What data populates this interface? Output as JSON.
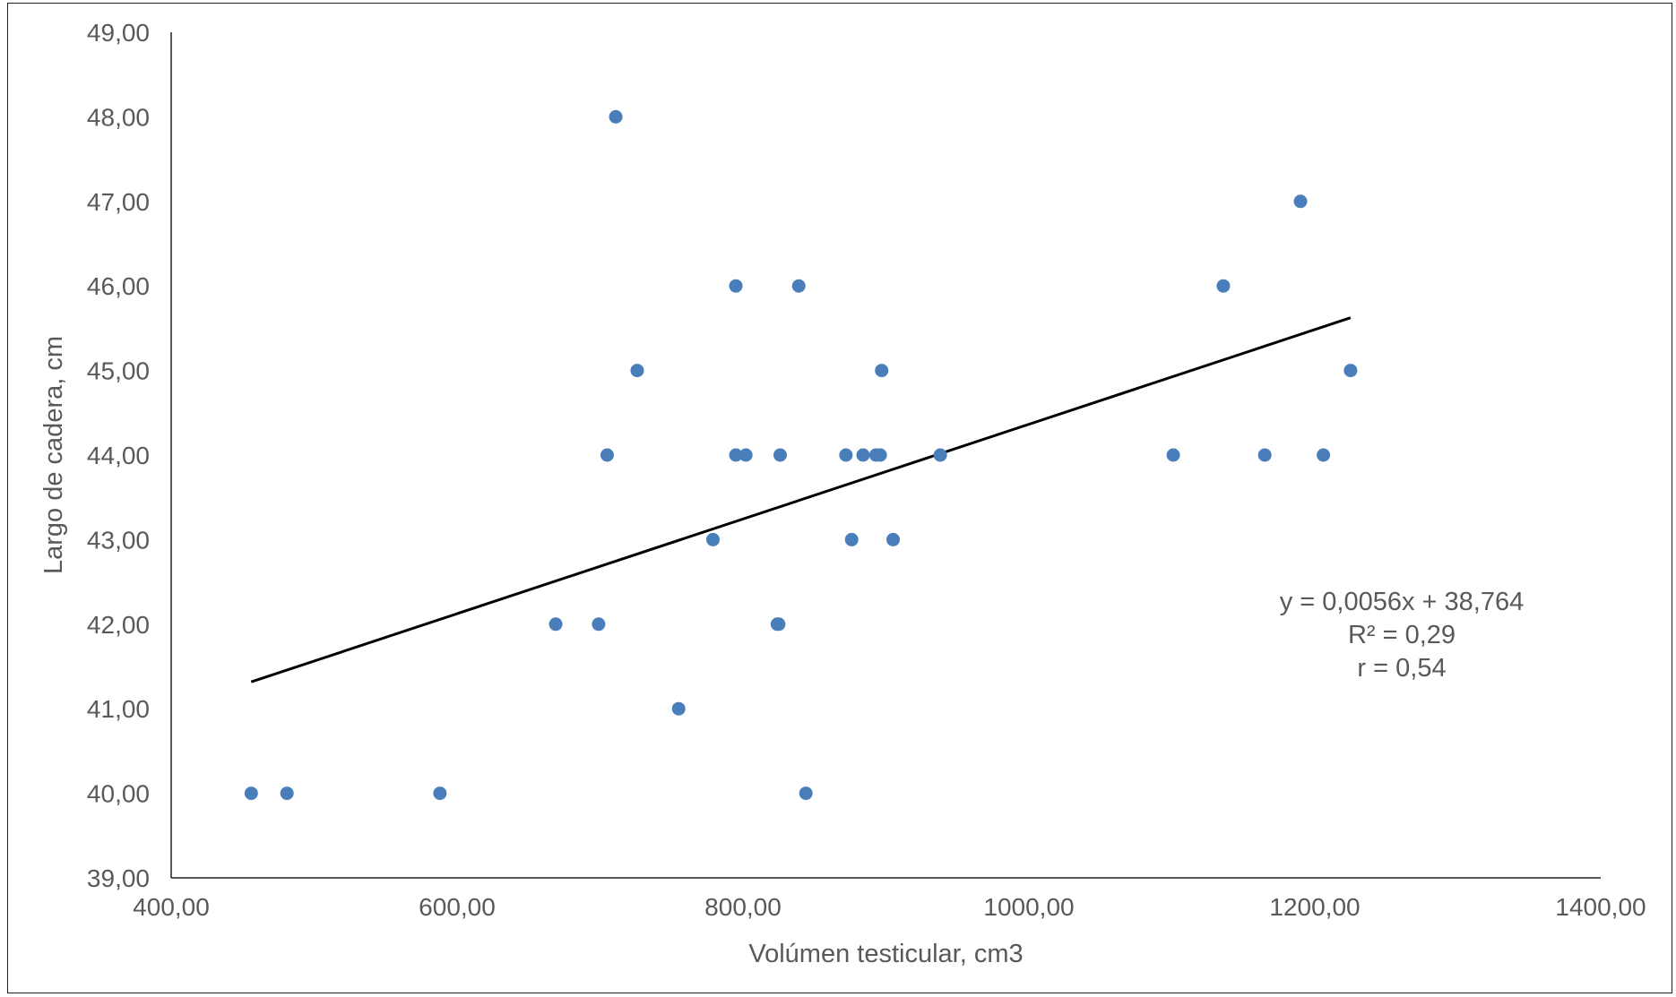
{
  "chart_data": {
    "type": "scatter",
    "title": "",
    "xlabel": "Volúmen testicular, cm3",
    "ylabel": "Largo de cadera, cm",
    "xlim": [
      400,
      1400
    ],
    "ylim": [
      39,
      49
    ],
    "x_ticks": [
      400,
      600,
      800,
      1000,
      1200,
      1400
    ],
    "y_ticks": [
      39,
      40,
      41,
      42,
      43,
      44,
      45,
      46,
      47,
      48,
      49
    ],
    "x_tick_labels": [
      "400,00",
      "600,00",
      "800,00",
      "1000,00",
      "1200,00",
      "1400,00"
    ],
    "y_tick_labels": [
      "39,00",
      "40,00",
      "41,00",
      "42,00",
      "43,00",
      "44,00",
      "45,00",
      "46,00",
      "47,00",
      "48,00",
      "49,00"
    ],
    "grid": false,
    "legend": "none",
    "series": [
      {
        "color": "#4a7ebb",
        "points": [
          {
            "x": 456,
            "y": 40
          },
          {
            "x": 481,
            "y": 40
          },
          {
            "x": 588,
            "y": 40
          },
          {
            "x": 669,
            "y": 42
          },
          {
            "x": 699,
            "y": 42
          },
          {
            "x": 705,
            "y": 44
          },
          {
            "x": 711,
            "y": 48
          },
          {
            "x": 726,
            "y": 45
          },
          {
            "x": 755,
            "y": 41
          },
          {
            "x": 779,
            "y": 43
          },
          {
            "x": 795,
            "y": 46
          },
          {
            "x": 795,
            "y": 44
          },
          {
            "x": 802,
            "y": 44
          },
          {
            "x": 824,
            "y": 42
          },
          {
            "x": 825,
            "y": 42
          },
          {
            "x": 826,
            "y": 44
          },
          {
            "x": 839,
            "y": 46
          },
          {
            "x": 844,
            "y": 40
          },
          {
            "x": 872,
            "y": 44
          },
          {
            "x": 876,
            "y": 43
          },
          {
            "x": 884,
            "y": 44
          },
          {
            "x": 893,
            "y": 44
          },
          {
            "x": 896,
            "y": 44
          },
          {
            "x": 897,
            "y": 45
          },
          {
            "x": 905,
            "y": 43
          },
          {
            "x": 938,
            "y": 44
          },
          {
            "x": 1101,
            "y": 44
          },
          {
            "x": 1136,
            "y": 46
          },
          {
            "x": 1165,
            "y": 44
          },
          {
            "x": 1190,
            "y": 47
          },
          {
            "x": 1206,
            "y": 44
          },
          {
            "x": 1225,
            "y": 45
          }
        ]
      }
    ],
    "trendline": {
      "type": "linear",
      "color": "#000000",
      "x_start": 456,
      "x_end": 1225,
      "slope": 0.0056,
      "intercept": 38.764
    },
    "annotations": {
      "equation": "y = 0,0056x + 38,764",
      "r_squared": "R² = 0,29",
      "r": "r = 0,54"
    }
  }
}
